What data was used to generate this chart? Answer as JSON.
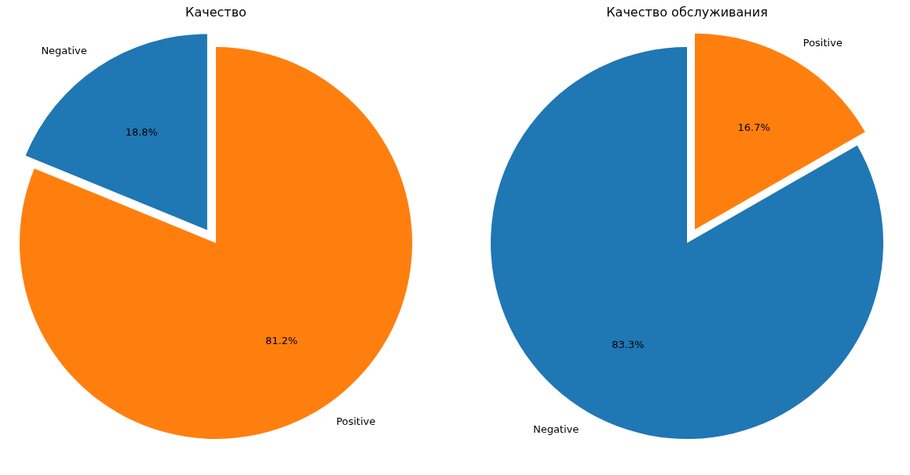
{
  "chart_data": [
    {
      "type": "pie",
      "title": "Качество",
      "categories": [
        "Negative",
        "Positive"
      ],
      "values": [
        18.8,
        81.2
      ],
      "colors": [
        "#1f77b4",
        "#ff7f0e"
      ],
      "value_labels": [
        "18.8%",
        "81.2%"
      ]
    },
    {
      "type": "pie",
      "title": "Качество обслуживания",
      "categories": [
        "Negative",
        "Positive"
      ],
      "values": [
        83.3,
        16.7
      ],
      "colors": [
        "#1f77b4",
        "#ff7f0e"
      ],
      "value_labels": [
        "83.3%",
        "16.7%"
      ]
    }
  ]
}
